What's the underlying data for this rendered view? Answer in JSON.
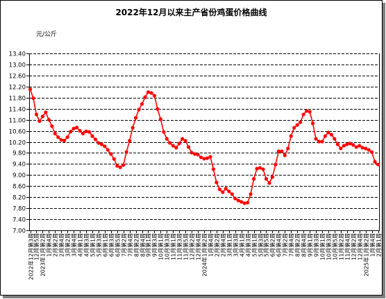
{
  "chart_data": {
    "type": "line",
    "title": "2022年12月以来主产省份鸡蛋价格曲线",
    "ylabel": "元/公斤",
    "ylim": [
      7.0,
      13.4
    ],
    "y_tick_labels": [
      "7.00",
      "7.40",
      "7.80",
      "8.20",
      "8.60",
      "9.00",
      "9.40",
      "9.80",
      "10.20",
      "10.60",
      "11.00",
      "11.40",
      "11.80",
      "12.20",
      "12.60",
      "13.00",
      "13.40"
    ],
    "x_tick_labels": [
      "2022年12月第3周",
      "12月第5周",
      "2023年1月第2周",
      "1月第4周",
      "2月第2周",
      "2月第4周",
      "3月第2周",
      "3月第4周",
      "4月第1周",
      "4月第3周",
      "5月第1周",
      "5月第3周",
      "6月第1周",
      "6月第3周",
      "6月第5周",
      "7月第2周",
      "7月第4周",
      "8月第2周",
      "8月第4周",
      "9月第1周",
      "9月第3周",
      "10月第1周",
      "10月第3周",
      "11月第1周",
      "11月第3周",
      "11月第5周",
      "12月第2周",
      "12月第4周",
      "2024年1月第2周",
      "1月第4周",
      "2月第2周",
      "2月第4周",
      "3月第1周",
      "3月第3周",
      "4月第1周",
      "4月第3周",
      "5月第1周",
      "5月第3周",
      "5月第5周",
      "6月第2周",
      "6月第4周",
      "7月第2周",
      "7月第4周",
      "8月第2周",
      "8月第4周",
      "9月第1周",
      "9月第3周",
      "10月第1周",
      "10月第3周",
      "10月第5周",
      "11月第2周",
      "11月第4周",
      "12月第2周",
      "12月第4周",
      "2025年1月第2周",
      "1月第4周",
      "2月第1周"
    ],
    "series": [
      {
        "color": "#ff0000",
        "values": [
          12.1,
          11.78,
          11.19,
          10.95,
          11.12,
          11.27,
          11.0,
          10.77,
          10.5,
          10.37,
          10.27,
          10.25,
          10.37,
          10.57,
          10.68,
          10.72,
          10.6,
          10.5,
          10.58,
          10.56,
          10.41,
          10.29,
          10.16,
          10.11,
          10.04,
          9.91,
          9.76,
          9.58,
          9.33,
          9.28,
          9.36,
          9.83,
          10.24,
          10.71,
          11.07,
          11.37,
          11.57,
          11.82,
          12.0,
          11.97,
          11.87,
          11.39,
          11.02,
          10.56,
          10.31,
          10.16,
          10.06,
          9.99,
          10.14,
          10.31,
          10.24,
          10.01,
          9.81,
          9.76,
          9.74,
          9.64,
          9.59,
          9.61,
          9.66,
          9.21,
          8.73,
          8.48,
          8.38,
          8.51,
          8.41,
          8.31,
          8.15,
          8.08,
          8.03,
          7.98,
          8.0,
          8.31,
          8.86,
          9.23,
          9.26,
          9.21,
          8.86,
          8.71,
          8.93,
          9.38,
          9.86,
          9.86,
          9.71,
          9.96,
          10.41,
          10.71,
          10.81,
          10.91,
          11.19,
          11.32,
          11.29,
          10.87,
          10.31,
          10.21,
          10.21,
          10.41,
          10.54,
          10.46,
          10.31,
          10.11,
          9.96,
          10.06,
          10.11,
          10.14,
          10.09,
          10.01,
          10.06,
          9.99,
          9.96,
          9.91,
          9.83,
          9.48,
          9.38
        ]
      }
    ],
    "grid": true,
    "legend": false
  }
}
